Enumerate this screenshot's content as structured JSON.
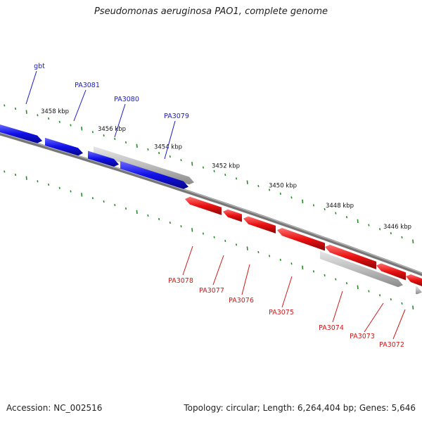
{
  "title": "Pseudomonas aeruginosa PAO1, complete genome",
  "accession_text": "Accession: NC_002516",
  "stats_text": "Topology: circular; Length: 6,264,404 bp; Genes: 5,646",
  "colors": {
    "forward": "#1010e8",
    "reverse": "#e81010",
    "other": "#bdbdbd",
    "backbone": "#777777",
    "tick": "#2a8a2a",
    "forward_label": "#1a1acc",
    "reverse_label": "#cc1a1a"
  },
  "ruler_labels": [
    "3458 kbp",
    "3456 kbp",
    "3454 kbp",
    "3452 kbp",
    "3450 kbp",
    "3448 kbp",
    "3446 kbp"
  ],
  "forward_genes": [
    "gbt",
    "PA3081",
    "PA3080",
    "PA3079"
  ],
  "reverse_genes": [
    "PA3078",
    "PA3077",
    "PA3076",
    "PA3075",
    "PA3074",
    "PA3073",
    "PA3072"
  ]
}
